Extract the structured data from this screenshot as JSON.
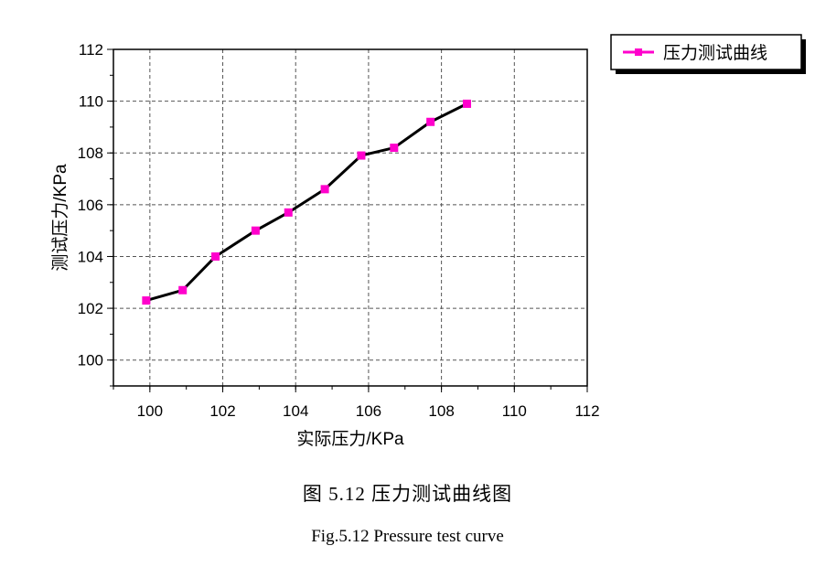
{
  "chart_data": {
    "type": "line",
    "xlabel": "实际压力/KPa",
    "ylabel": "测试压力/KPa",
    "xlim": [
      99,
      112
    ],
    "ylim": [
      99,
      112
    ],
    "x_ticks": [
      100,
      102,
      104,
      106,
      108,
      110,
      112
    ],
    "y_ticks": [
      100,
      102,
      104,
      106,
      108,
      110,
      112
    ],
    "grid": true,
    "legend_position": "top-right, outside plot",
    "series": [
      {
        "name": "压力测试曲线",
        "line_color": "#000000",
        "marker_color": "#ff00cc",
        "marker": "square",
        "x": [
          99.9,
          100.9,
          101.8,
          102.9,
          103.8,
          104.8,
          105.8,
          106.7,
          107.7,
          108.7
        ],
        "y": [
          102.3,
          102.7,
          104.0,
          105.0,
          105.7,
          106.6,
          107.9,
          108.2,
          109.2,
          109.9
        ]
      }
    ]
  },
  "captions": {
    "cn": "图 5.12 压力测试曲线图",
    "en": "Fig.5.12 Pressure test curve"
  }
}
